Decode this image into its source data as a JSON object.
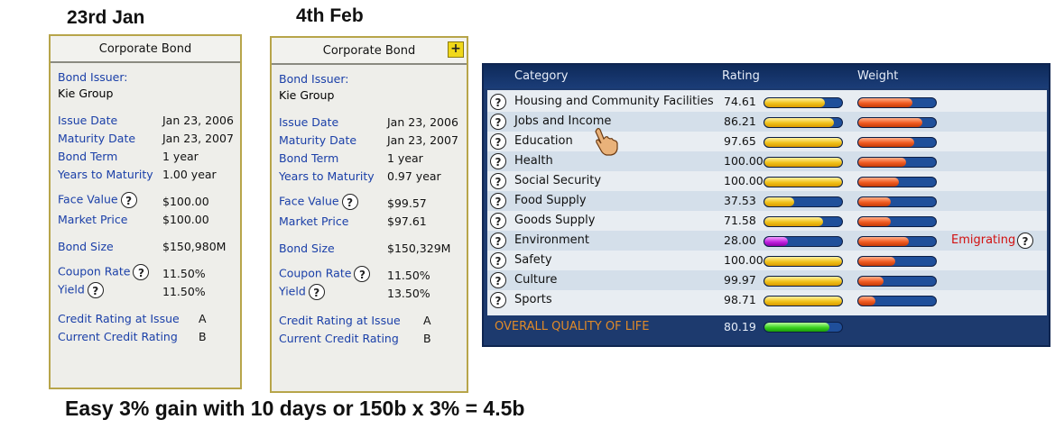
{
  "labels": {
    "left_date": "23rd Jan",
    "right_date": "4th Feb",
    "caption": "Easy 3% gain with 10 days or 150b x 3% = 4.5b"
  },
  "bond_left": {
    "title": "Corporate Bond",
    "issuer_label": "Bond Issuer:",
    "issuer": "Kie Group",
    "issue_date_label": "Issue Date",
    "issue_date": "Jan 23, 2006",
    "maturity_label": "Maturity Date",
    "maturity": "Jan 23, 2007",
    "term_label": "Bond Term",
    "term": "1 year",
    "ytm_label": "Years to Maturity",
    "ytm": "1.00 year",
    "face_label": "Face Value",
    "face": "$100.00",
    "market_label": "Market Price",
    "market": "$100.00",
    "size_label": "Bond Size",
    "size": "$150,980M",
    "coupon_label": "Coupon Rate",
    "coupon": "11.50%",
    "yield_label": "Yield",
    "yield": "11.50%",
    "credit_issue_label": "Credit Rating at Issue",
    "credit_issue": "A",
    "credit_current_label": "Current Credit Rating",
    "credit_current": "B"
  },
  "bond_right": {
    "title": "Corporate Bond",
    "plus": "+",
    "issuer_label": "Bond Issuer:",
    "issuer": "Kie Group",
    "issue_date_label": "Issue Date",
    "issue_date": "Jan 23, 2006",
    "maturity_label": "Maturity Date",
    "maturity": "Jan 23, 2007",
    "term_label": "Bond Term",
    "term": "1 year",
    "ytm_label": "Years to Maturity",
    "ytm": "0.97 year",
    "face_label": "Face Value",
    "face": "$99.57",
    "market_label": "Market Price",
    "market": "$97.61",
    "size_label": "Bond Size",
    "size": "$150,329M",
    "coupon_label": "Coupon Rate",
    "coupon": "11.50%",
    "yield_label": "Yield",
    "yield": "13.50%",
    "credit_issue_label": "Credit Rating at Issue",
    "credit_issue": "A",
    "credit_current_label": "Current Credit Rating",
    "credit_current": "B"
  },
  "help_glyph": "?",
  "quality": {
    "headers": {
      "category": "Category",
      "rating": "Rating",
      "weight": "Weight"
    },
    "rows": [
      {
        "category": "Housing and Community Facilities",
        "rating": "74.61",
        "rating_fill": 0.78,
        "rating_color": "yellow",
        "weight_fill": 0.7,
        "note": ""
      },
      {
        "category": "Jobs and Income",
        "rating": "86.21",
        "rating_fill": 0.9,
        "rating_color": "yellow",
        "weight_fill": 0.82,
        "note": ""
      },
      {
        "category": "Education",
        "rating": "97.65",
        "rating_fill": 1.0,
        "rating_color": "yellow",
        "weight_fill": 0.72,
        "note": ""
      },
      {
        "category": "Health",
        "rating": "100.00",
        "rating_fill": 1.0,
        "rating_color": "yellow",
        "weight_fill": 0.62,
        "note": ""
      },
      {
        "category": "Social Security",
        "rating": "100.00",
        "rating_fill": 1.0,
        "rating_color": "yellow",
        "weight_fill": 0.52,
        "note": ""
      },
      {
        "category": "Food Supply",
        "rating": "37.53",
        "rating_fill": 0.38,
        "rating_color": "yellow",
        "weight_fill": 0.42,
        "note": ""
      },
      {
        "category": "Goods Supply",
        "rating": "71.58",
        "rating_fill": 0.75,
        "rating_color": "yellow",
        "weight_fill": 0.42,
        "note": ""
      },
      {
        "category": "Environment",
        "rating": "28.00",
        "rating_fill": 0.3,
        "rating_color": "purple",
        "weight_fill": 0.65,
        "note": "Emigrating"
      },
      {
        "category": "Safety",
        "rating": "100.00",
        "rating_fill": 1.0,
        "rating_color": "yellow",
        "weight_fill": 0.48,
        "note": ""
      },
      {
        "category": "Culture",
        "rating": "99.97",
        "rating_fill": 1.0,
        "rating_color": "yellow",
        "weight_fill": 0.32,
        "note": ""
      },
      {
        "category": "Sports",
        "rating": "98.71",
        "rating_fill": 1.0,
        "rating_color": "yellow",
        "weight_fill": 0.22,
        "note": ""
      }
    ],
    "overall_label": "OVERALL QUALITY OF LIFE",
    "overall_rating": "80.19",
    "overall_fill": 0.84
  }
}
